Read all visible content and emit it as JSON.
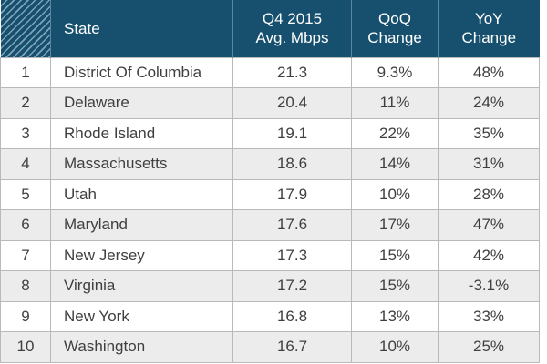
{
  "chart_data": {
    "type": "table",
    "columns": [
      "",
      "State",
      "Q4 2015\nAvg. Mbps",
      "QoQ\nChange",
      "YoY\nChange"
    ],
    "header": {
      "state": "State",
      "speed_line1": "Q4 2015",
      "speed_line2": "Avg. Mbps",
      "qoq_line1": "QoQ",
      "qoq_line2": "Change",
      "yoy_line1": "YoY",
      "yoy_line2": "Change"
    },
    "rows": [
      {
        "rank": "1",
        "state": "District Of Columbia",
        "speed": "21.3",
        "qoq": "9.3%",
        "yoy": "48%"
      },
      {
        "rank": "2",
        "state": "Delaware",
        "speed": "20.4",
        "qoq": "11%",
        "yoy": "24%"
      },
      {
        "rank": "3",
        "state": "Rhode Island",
        "speed": "19.1",
        "qoq": "22%",
        "yoy": "35%"
      },
      {
        "rank": "4",
        "state": "Massachusetts",
        "speed": "18.6",
        "qoq": "14%",
        "yoy": "31%"
      },
      {
        "rank": "5",
        "state": "Utah",
        "speed": "17.9",
        "qoq": "10%",
        "yoy": "28%"
      },
      {
        "rank": "6",
        "state": "Maryland",
        "speed": "17.6",
        "qoq": "17%",
        "yoy": "47%"
      },
      {
        "rank": "7",
        "state": "New Jersey",
        "speed": "17.3",
        "qoq": "15%",
        "yoy": "42%"
      },
      {
        "rank": "8",
        "state": "Virginia",
        "speed": "17.2",
        "qoq": "15%",
        "yoy": "-3.1%"
      },
      {
        "rank": "9",
        "state": "New York",
        "speed": "16.8",
        "qoq": "13%",
        "yoy": "33%"
      },
      {
        "rank": "10",
        "state": "Washington",
        "speed": "16.7",
        "qoq": "10%",
        "yoy": "25%"
      }
    ]
  },
  "colors": {
    "header_bg": "#17506e",
    "header_text": "#ffffff",
    "row_alt_bg": "#ececec",
    "row_bg": "#ffffff",
    "body_text": "#3f3f3f",
    "border": "#b9b9b9"
  }
}
